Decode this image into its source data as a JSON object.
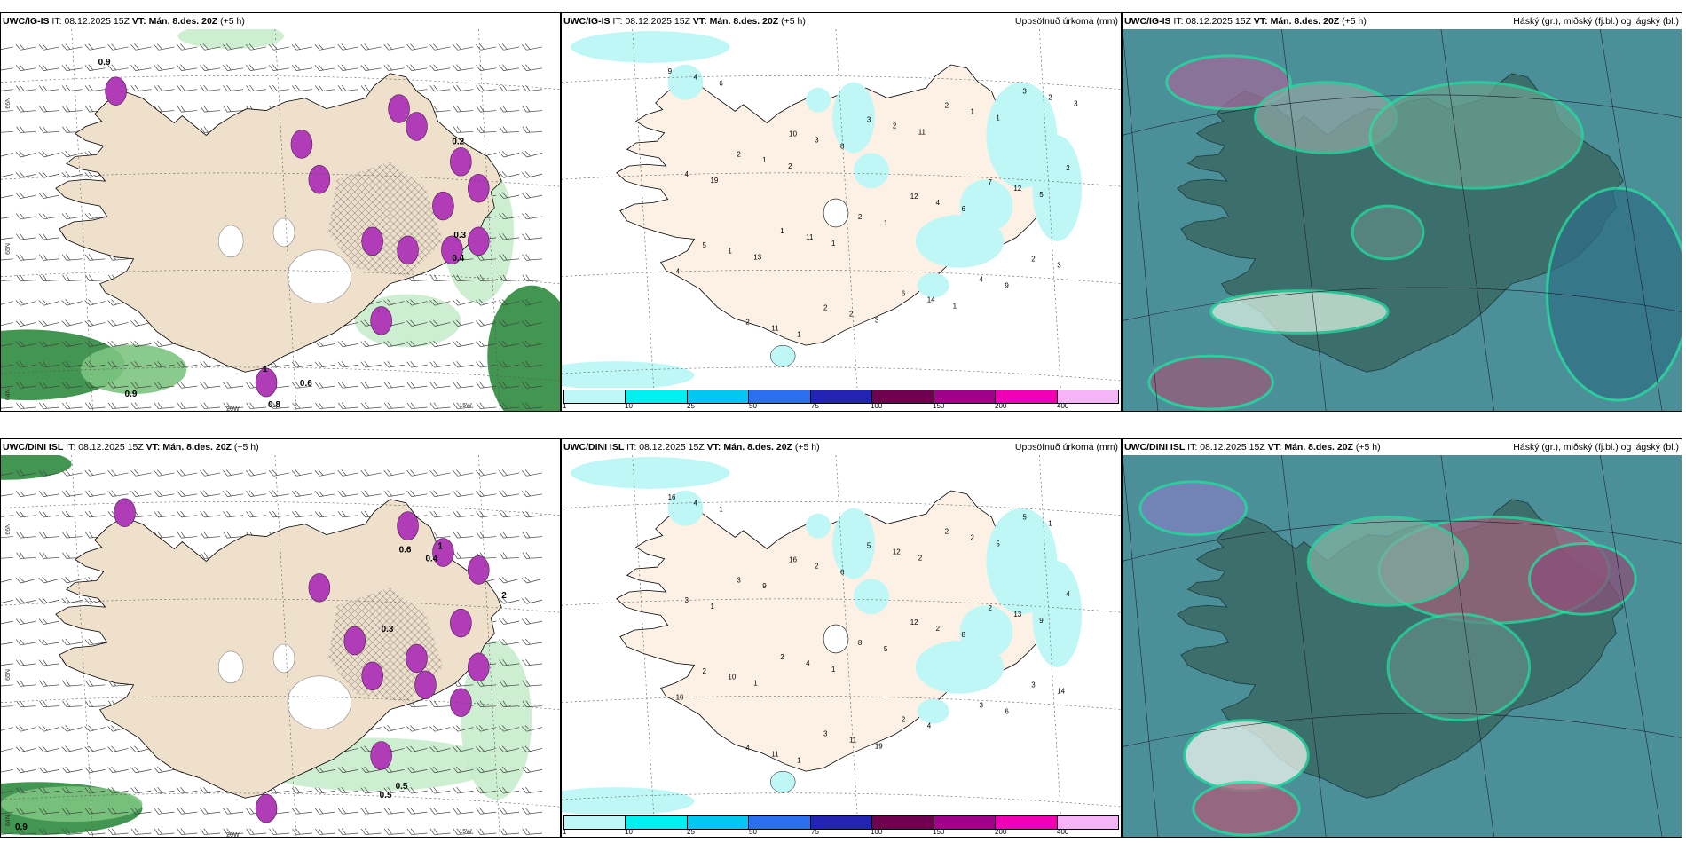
{
  "legend": {
    "colors": [
      "#bff7f7",
      "#00f0f0",
      "#00c8f0",
      "#2b6ef0",
      "#2323b4",
      "#6e0050",
      "#a0008c",
      "#f000b4",
      "#f5b4f5"
    ],
    "labels": [
      "1",
      "10",
      "25",
      "50",
      "75",
      "100",
      "150",
      "200",
      "400"
    ]
  },
  "rows": [
    {
      "model": "UWC/IG-IS",
      "it_label": "IT:",
      "it_value": "08.12.2025 15Z",
      "vt_label": "VT:",
      "vt_value": "Mán. 8.des. 20Z",
      "lead": "(+5 h)",
      "precip_title": "Uppsöfnuð úrkoma (mm)",
      "cloud_title": "Háský (gr.), miðský (fj.bl.) og lágský (bl.)",
      "lat_labels": [
        "66N",
        "65N",
        "64N"
      ],
      "lon_labels": [
        "20W",
        "15W"
      ],
      "wind_values": [
        "0.9",
        "0.8",
        "0.6",
        "0.2",
        "0.4",
        "0.3",
        "1",
        "0.9"
      ],
      "precip_values": [
        "9",
        "10",
        "12",
        "2",
        "2",
        "3",
        "7",
        "5",
        "2",
        "2",
        "2",
        "1",
        "6",
        "3",
        "2",
        "2",
        "4",
        "4",
        "3",
        "4",
        "3",
        "11",
        "2",
        "12",
        "1",
        "2",
        "1",
        "4",
        "11",
        "14",
        "2",
        "1",
        "1",
        "9",
        "6",
        "8",
        "6",
        "4",
        "1",
        "11",
        "5",
        "13",
        "3",
        "1",
        "19",
        "1",
        "1",
        "3",
        "2"
      ]
    },
    {
      "model": "UWC/DINI ISL",
      "it_label": "IT:",
      "it_value": "08.12.2025 15Z",
      "vt_label": "VT:",
      "vt_value": "Mán. 8.des. 20Z",
      "lead": "(+5 h)",
      "precip_title": "Uppsöfnuð úrkoma (mm)",
      "cloud_title": "Háský (gr.), miðský (fj.bl.) og lágský (bl.)",
      "lat_labels": [
        "66N",
        "65N",
        "64N"
      ],
      "lon_labels": [
        "20W",
        "15W"
      ],
      "wind_values": [
        "0.9",
        "0.5",
        "0.5",
        "1",
        "2",
        "0.4",
        "0.6",
        "0.3"
      ],
      "precip_values": [
        "16",
        "16",
        "12",
        "3",
        "4",
        "5",
        "2",
        "2",
        "3",
        "2",
        "4",
        "2",
        "2",
        "5",
        "3",
        "8",
        "3",
        "4",
        "2",
        "2",
        "14",
        "11",
        "12",
        "13",
        "10",
        "11",
        "2",
        "3",
        "4",
        "4",
        "1",
        "9",
        "5",
        "6",
        "1",
        "6",
        "8",
        "10",
        "1",
        "2",
        "9",
        "1",
        "19",
        "5",
        "1",
        "1"
      ]
    }
  ]
}
